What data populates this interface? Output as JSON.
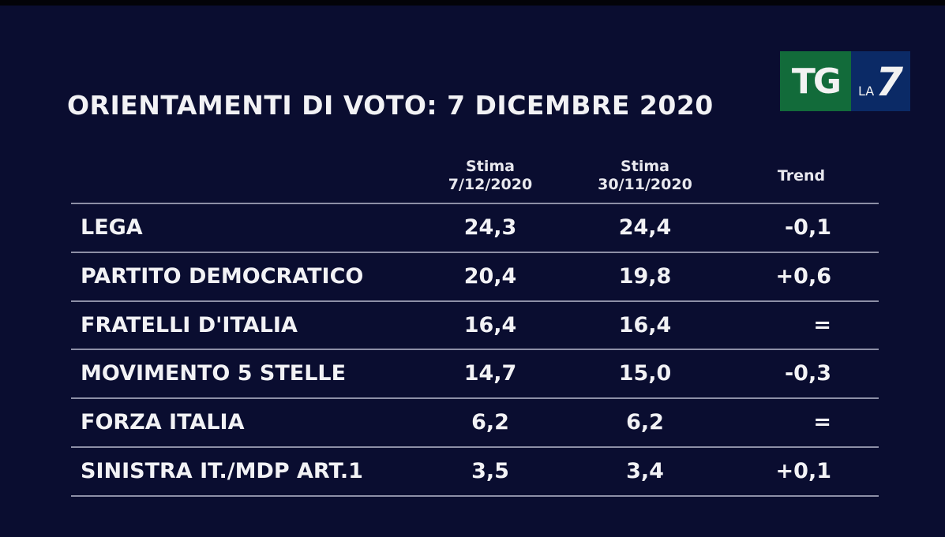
{
  "title": "ORIENTAMENTI DI VOTO: 7 DICEMBRE 2020",
  "logo": {
    "tg": "TG",
    "la": "LA",
    "seven": "7"
  },
  "colors": {
    "background": "#0a0d30",
    "logo_green": "#126b3a",
    "logo_blue": "#0b2a66",
    "rule": "#8d8fa6"
  },
  "chart_data": {
    "type": "table",
    "title": "ORIENTAMENTI DI VOTO: 7 DICEMBRE 2020",
    "columns": [
      {
        "line1": "Stima",
        "line2": "7/12/2020"
      },
      {
        "line1": "Stima",
        "line2": "30/11/2020"
      },
      {
        "line1": "Trend",
        "line2": ""
      }
    ],
    "rows": [
      {
        "party": "LEGA",
        "v1": "24,3",
        "v2": "24,4",
        "trend": "-0,1"
      },
      {
        "party": "PARTITO DEMOCRATICO",
        "v1": "20,4",
        "v2": "19,8",
        "trend": "+0,6"
      },
      {
        "party": "FRATELLI D'ITALIA",
        "v1": "16,4",
        "v2": "16,4",
        "trend": "="
      },
      {
        "party": "MOVIMENTO 5 STELLE",
        "v1": "14,7",
        "v2": "15,0",
        "trend": "-0,3"
      },
      {
        "party": "FORZA ITALIA",
        "v1": "6,2",
        "v2": "6,2",
        "trend": "="
      },
      {
        "party": "SINISTRA IT./MDP ART.1",
        "v1": "3,5",
        "v2": "3,4",
        "trend": "+0,1"
      }
    ]
  }
}
